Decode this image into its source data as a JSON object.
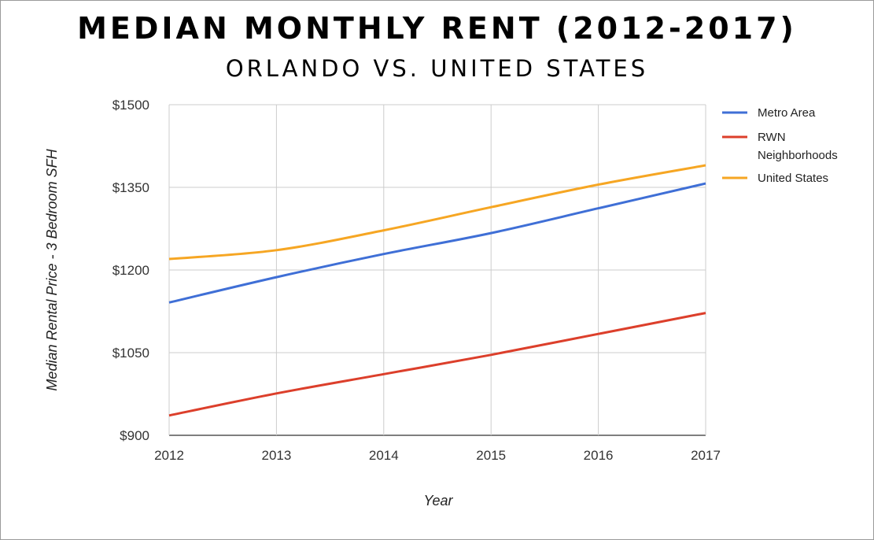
{
  "chart_data": {
    "type": "line",
    "title": "MEDIAN MONTHLY RENT (2012-2017)",
    "subtitle": "ORLANDO VS. UNITED STATES",
    "xlabel": "Year",
    "ylabel": "Median Rental Price - 3 Bedroom SFH",
    "x": [
      2012,
      2013,
      2014,
      2015,
      2016,
      2017
    ],
    "xlim": [
      2012,
      2017
    ],
    "ylim": [
      900,
      1500
    ],
    "yticks": [
      900,
      1050,
      1200,
      1350,
      1500
    ],
    "ytick_labels": [
      "$900",
      "$1050",
      "$1200",
      "$1350",
      "$1500"
    ],
    "xtick_labels": [
      "2012",
      "2013",
      "2014",
      "2015",
      "2016",
      "2017"
    ],
    "grid": true,
    "legend_position": "right",
    "series": [
      {
        "name": "Metro Area",
        "color": "#3f6fd6",
        "values": [
          1141,
          1187,
          1229,
          1267,
          1312,
          1357
        ]
      },
      {
        "name": "RWN Neighborhoods",
        "legend_lines": [
          "RWN",
          "Neighborhoods"
        ],
        "color": "#dc3f2b",
        "values": [
          936,
          976,
          1011,
          1046,
          1084,
          1122
        ]
      },
      {
        "name": "United States",
        "color": "#f6a623",
        "values": [
          1220,
          1236,
          1272,
          1314,
          1355,
          1390
        ]
      }
    ]
  }
}
